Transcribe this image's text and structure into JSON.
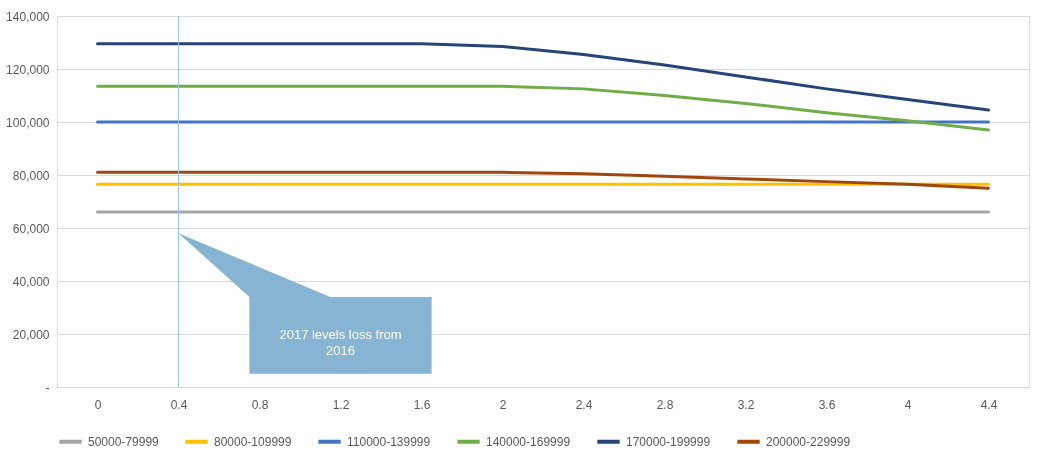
{
  "chart_data": {
    "type": "line",
    "x": [
      0,
      0.4,
      0.8,
      1.2,
      1.6,
      2,
      2.4,
      2.8,
      3.2,
      3.6,
      4,
      4.4
    ],
    "xlim": [
      -0.2,
      4.6
    ],
    "xticks": [
      0,
      0.4,
      0.8,
      1.2,
      1.6,
      2,
      2.4,
      2.8,
      3.2,
      3.6,
      4,
      4.4
    ],
    "ylim": [
      0,
      140000
    ],
    "yticks": [
      {
        "value": 0,
        "label": "-"
      },
      {
        "value": 20000,
        "label": "20,000"
      },
      {
        "value": 40000,
        "label": "40,000"
      },
      {
        "value": 60000,
        "label": "60,000"
      },
      {
        "value": 80000,
        "label": "80,000"
      },
      {
        "value": 100000,
        "label": "100,000"
      },
      {
        "value": 120000,
        "label": "120,000"
      },
      {
        "value": 140000,
        "label": "140,000"
      }
    ],
    "series": [
      {
        "name": "50000-79999",
        "color": "#a5a5a5",
        "values": [
          66000,
          66000,
          66000,
          66000,
          66000,
          66000,
          66000,
          66000,
          66000,
          66000,
          66000,
          66000
        ]
      },
      {
        "name": "80000-109999",
        "color": "#ffc000",
        "values": [
          76500,
          76500,
          76500,
          76500,
          76500,
          76500,
          76500,
          76500,
          76500,
          76500,
          76500,
          76500
        ]
      },
      {
        "name": "110000-139999",
        "color": "#4472c4",
        "values": [
          100000,
          100000,
          100000,
          100000,
          100000,
          100000,
          100000,
          100000,
          100000,
          100000,
          100000,
          100000
        ]
      },
      {
        "name": "140000-169999",
        "color": "#70ad47",
        "values": [
          113500,
          113500,
          113500,
          113500,
          113500,
          113500,
          112500,
          110000,
          107000,
          103500,
          100500,
          97000
        ]
      },
      {
        "name": "170000-199999",
        "color": "#264478",
        "values": [
          129500,
          129500,
          129500,
          129500,
          129500,
          128500,
          125500,
          121500,
          117000,
          112500,
          108500,
          104500
        ]
      },
      {
        "name": "200000-229999",
        "color": "#9e480e",
        "values": [
          81000,
          81000,
          81000,
          81000,
          81000,
          81000,
          80500,
          79500,
          78500,
          77500,
          76500,
          75000
        ]
      }
    ],
    "ref_lines": [
      {
        "axis": "x",
        "value": 0.4,
        "color": "#9dc3e6"
      }
    ],
    "annotations": [
      "2017 levels loss from 2016"
    ],
    "grid": "y",
    "legend": "bottom",
    "marker": "none",
    "line_style": "solid"
  }
}
